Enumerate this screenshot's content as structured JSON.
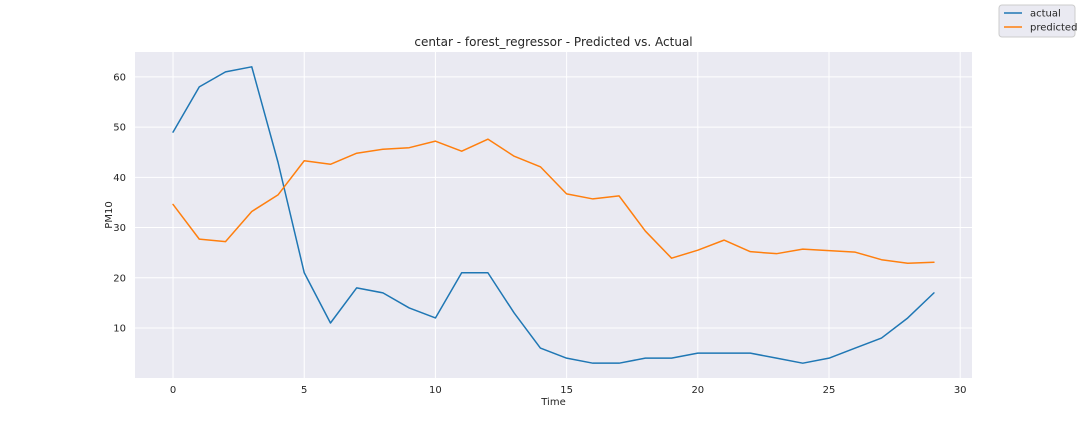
{
  "chart_data": {
    "type": "line",
    "title": "centar - forest_regressor - Predicted vs. Actual",
    "xlabel": "Time",
    "ylabel": "PM10",
    "xlim": [
      -1.45,
      30.45
    ],
    "ylim": [
      0.05,
      64.95
    ],
    "xticks": [
      0,
      5,
      10,
      15,
      20,
      25,
      30
    ],
    "yticks": [
      10,
      20,
      30,
      40,
      50,
      60
    ],
    "grid": true,
    "legend_position": "top-right",
    "x": [
      0,
      1,
      2,
      3,
      4,
      5,
      6,
      7,
      8,
      9,
      10,
      11,
      12,
      13,
      14,
      15,
      16,
      17,
      18,
      19,
      20,
      21,
      22,
      23,
      24,
      25,
      26,
      27,
      28,
      29
    ],
    "series": [
      {
        "name": "actual",
        "color": "#1f77b4",
        "values": [
          49,
          58,
          61,
          62,
          43,
          21,
          11,
          18,
          17,
          14,
          12,
          21,
          21,
          13,
          6,
          4,
          3,
          3,
          4,
          4,
          5,
          5,
          5,
          4,
          3,
          4,
          6,
          8,
          12,
          17
        ]
      },
      {
        "name": "predicted",
        "color": "#ff7f0e",
        "values": [
          34.6,
          27.7,
          27.2,
          33.2,
          36.5,
          43.3,
          42.6,
          44.8,
          45.6,
          45.9,
          47.2,
          45.2,
          47.6,
          44.2,
          42.1,
          36.7,
          35.7,
          36.3,
          29.3,
          23.9,
          25.5,
          27.5,
          25.2,
          24.8,
          25.7,
          25.4,
          25.1,
          23.6,
          22.9,
          23.1
        ]
      }
    ]
  }
}
